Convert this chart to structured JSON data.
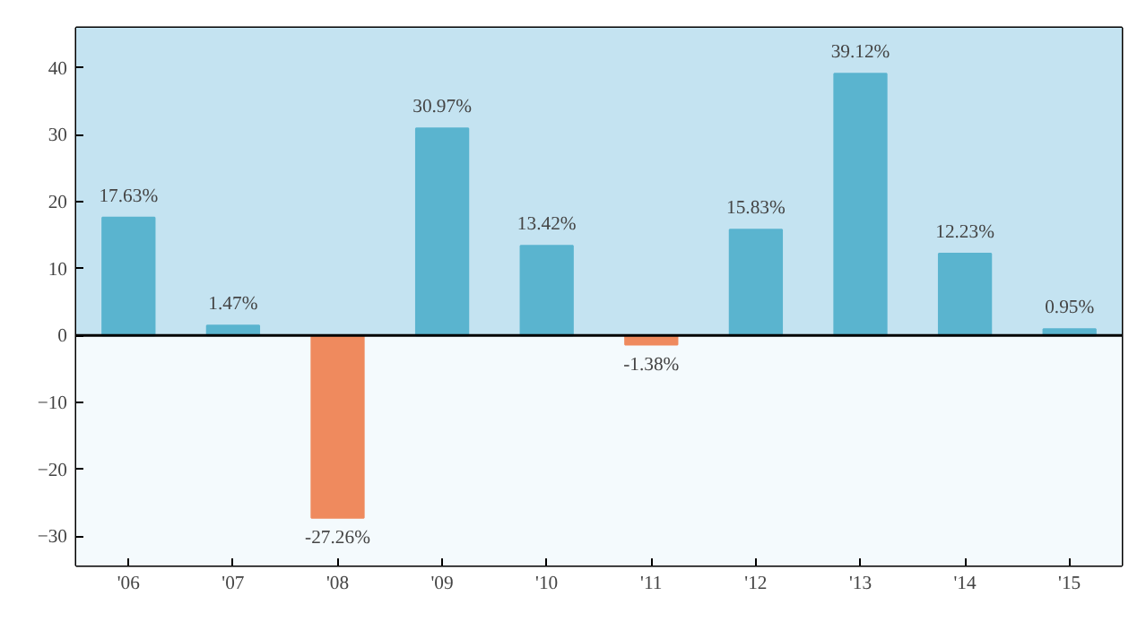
{
  "chart_data": {
    "type": "bar",
    "categories": [
      "'06",
      "'07",
      "'08",
      "'09",
      "'10",
      "'11",
      "'12",
      "'13",
      "'14",
      "'15"
    ],
    "values": [
      17.63,
      1.47,
      -27.26,
      30.97,
      13.42,
      -1.38,
      15.83,
      39.12,
      12.23,
      0.95
    ],
    "colors": [
      "#5ab4cf",
      "#5ab4cf",
      "#ef8a5e",
      "#5ab4cf",
      "#5ab4cf",
      "#ef8a5e",
      "#5ab4cf",
      "#5ab4cf",
      "#5ab4cf",
      "#5ab4cf"
    ],
    "value_labels": [
      "17.63%",
      "1.47%",
      "-27.26%",
      "30.97%",
      "13.42%",
      "-1.38%",
      "15.83%",
      "39.12%",
      "12.23%",
      "0.95%"
    ],
    "ylim": [
      -34.4,
      46
    ],
    "yticks": [
      {
        "value": -30,
        "label": "−30"
      },
      {
        "value": -20,
        "label": "−20"
      },
      {
        "value": -10,
        "label": "−10"
      },
      0,
      10,
      20,
      30,
      40
    ],
    "ref_lines": [
      {
        "axis": "y",
        "value": 0,
        "color": "#000000"
      }
    ],
    "bands": [
      {
        "axis": "y",
        "from": 0,
        "to": 46,
        "color": "#c4e3f1"
      },
      {
        "axis": "y",
        "from": -34.4,
        "to": 0,
        "color": "#f4fafd"
      }
    ]
  }
}
